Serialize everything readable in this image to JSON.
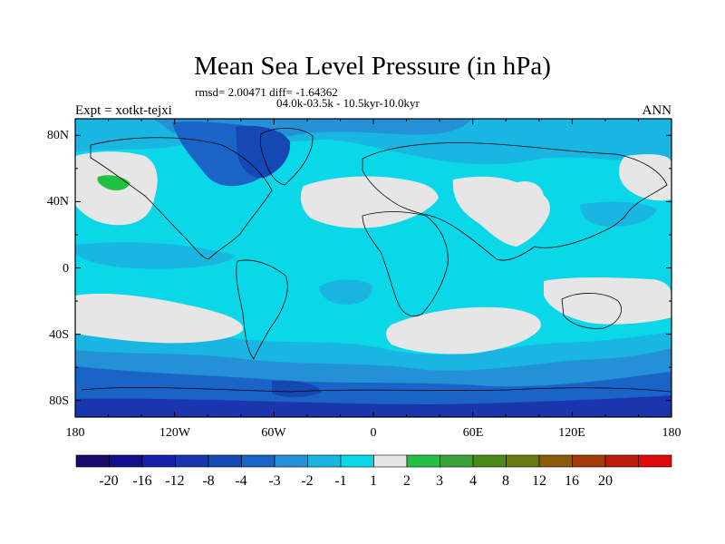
{
  "title": "Mean Sea Level Pressure (in hPa)",
  "stats": "rmsd= 2.00471 diff= -1.64362",
  "period": "04.0k-03.5k - 10.5kyr-10.0kyr",
  "experiment": "Expt = xotkt-tejxi",
  "season": "ANN",
  "chart_data": {
    "type": "heatmap",
    "title": "Mean Sea Level Pressure (in hPa)",
    "x_ticks": [
      "180",
      "120W",
      "60W",
      "0",
      "60E",
      "120E",
      "180"
    ],
    "x_range": [
      -180,
      180
    ],
    "y_ticks": [
      "80N",
      "40N",
      "0",
      "40S",
      "80S"
    ],
    "y_range": [
      -90,
      90
    ],
    "colorbar": {
      "labels": [
        "-20",
        "-16",
        "-12",
        "-8",
        "-4",
        "-3",
        "-2",
        "-1",
        "1",
        "2",
        "3",
        "4",
        "8",
        "12",
        "16",
        "20"
      ],
      "colors": [
        "#1a0a6a",
        "#130f8c",
        "#1421a8",
        "#1a35ae",
        "#1648b4",
        "#1a64c8",
        "#2491d6",
        "#18b6e0",
        "#0ad8e8",
        "#e6e6e6",
        "#23c046",
        "#3aa23a",
        "#4a8a18",
        "#6a7a10",
        "#8a5c0a",
        "#a43a0a",
        "#bc1c0a",
        "#dc0a0a"
      ]
    },
    "colors": {
      "background_band": "#0ad8e8",
      "neutral": "#e6e6e6",
      "weak_negative": "#18b6e0",
      "moderate_negative": "#2491d6",
      "strong_negative": "#1a64c8",
      "very_strong_negative": "#1648b4",
      "positive": "#23c046"
    }
  }
}
